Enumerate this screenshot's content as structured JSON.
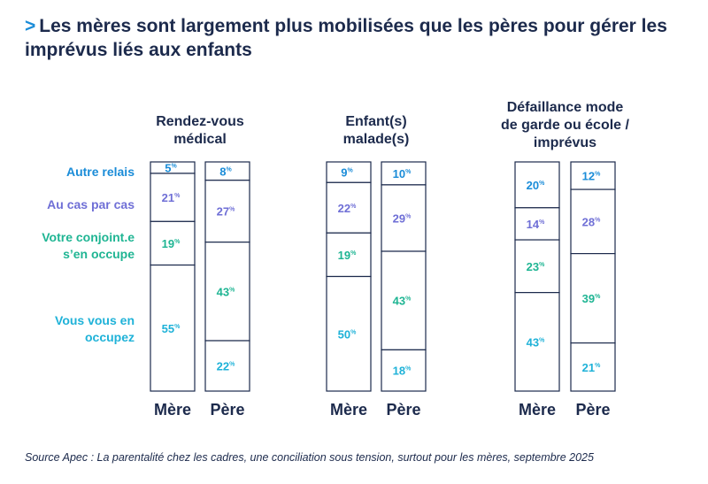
{
  "title": {
    "marker": ">",
    "text": "Les mères sont largement plus mobilisées que les pères pour gérer les imprévus liés aux enfants"
  },
  "source": "Source Apec : La parentalité chez les cadres, une conciliation sous tension, surtout pour les mères, septembre 2025",
  "colors": {
    "autre_relais": "#1a8cd8",
    "au_cas_par_cas": "#6f6fd6",
    "conjoint": "#1fb593",
    "vous": "#1fb2d8",
    "ink": "#1c2a4c"
  },
  "chart_data": {
    "type": "stacked-bar-100",
    "title": "Les mères sont largement plus mobilisées que les pères pour gérer les imprévus liés aux enfants",
    "unit": "%",
    "legend": [
      {
        "key": "autre",
        "label": "Autre relais"
      },
      {
        "key": "cas",
        "label": "Au cas par cas"
      },
      {
        "key": "conjoint",
        "label": "Votre conjoint.e s’en occupe"
      },
      {
        "key": "vous",
        "label": "Vous vous en occupez"
      }
    ],
    "groups": [
      {
        "title": [
          "Rendez-vous",
          "médical"
        ],
        "bars": [
          {
            "label": "Mère",
            "values": {
              "autre": 5,
              "cas": 21,
              "conjoint": 19,
              "vous": 55
            }
          },
          {
            "label": "Père",
            "values": {
              "autre": 8,
              "cas": 27,
              "conjoint": 43,
              "vous": 22
            }
          }
        ]
      },
      {
        "title": [
          "Enfant(s)",
          "malade(s)"
        ],
        "bars": [
          {
            "label": "Mère",
            "values": {
              "autre": 9,
              "cas": 22,
              "conjoint": 19,
              "vous": 50
            }
          },
          {
            "label": "Père",
            "values": {
              "autre": 10,
              "cas": 29,
              "conjoint": 43,
              "vous": 18
            }
          }
        ]
      },
      {
        "title": [
          "Défaillance mode",
          "de garde ou école /",
          "imprévus"
        ],
        "bars": [
          {
            "label": "Mère",
            "values": {
              "autre": 20,
              "cas": 14,
              "conjoint": 23,
              "vous": 43
            }
          },
          {
            "label": "Père",
            "values": {
              "autre": 12,
              "cas": 28,
              "conjoint": 39,
              "vous": 21
            }
          }
        ]
      }
    ]
  }
}
